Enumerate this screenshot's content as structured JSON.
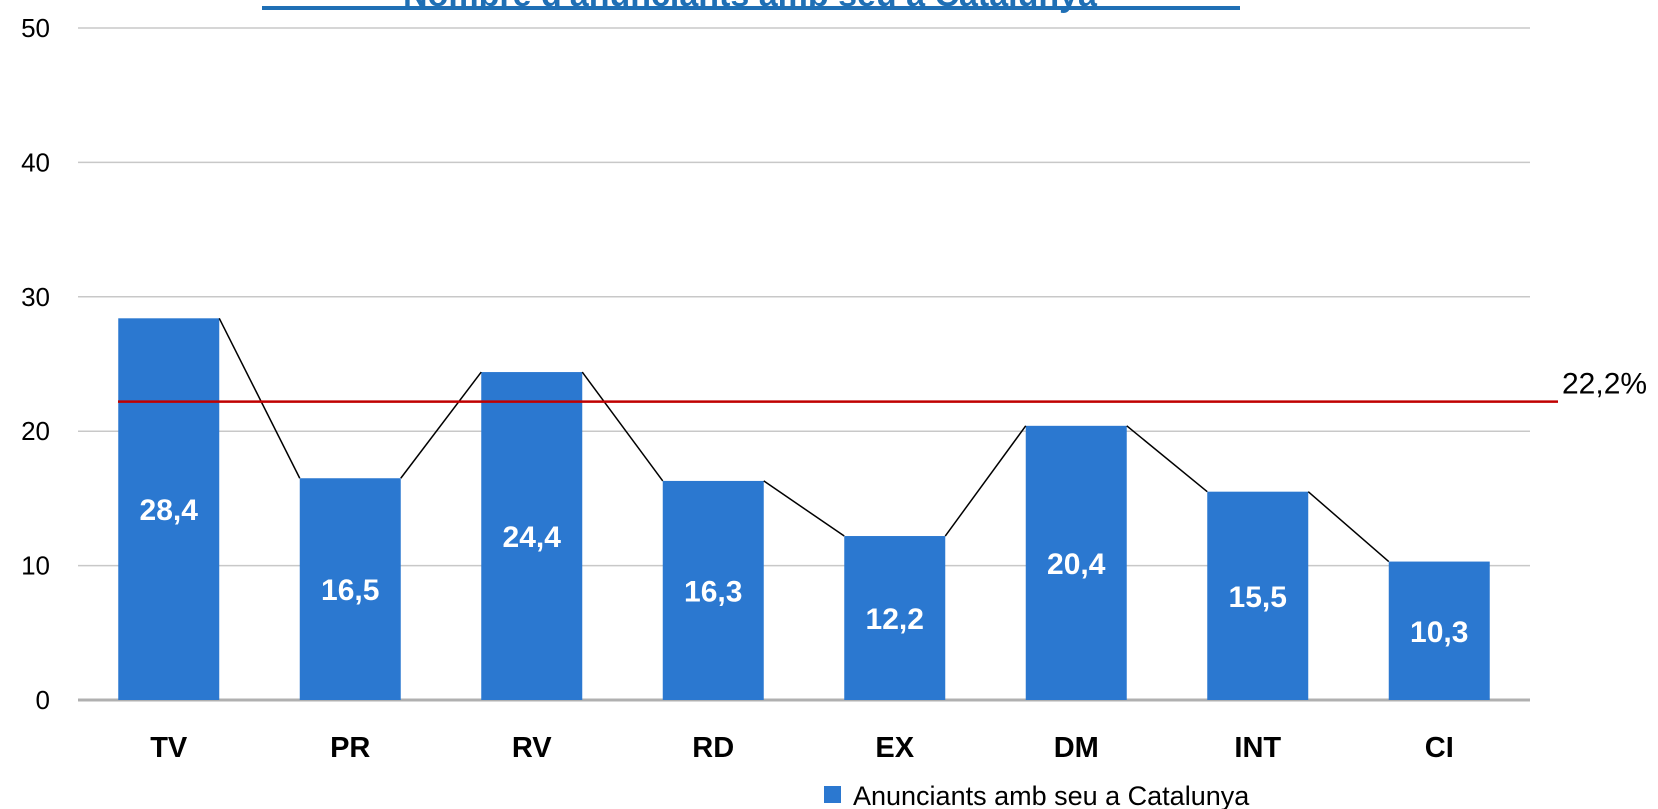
{
  "chart_data": {
    "type": "bar",
    "title": "Nombre d'anunciants amb seu a Catalunya",
    "categories": [
      "TV",
      "PR",
      "RV",
      "RD",
      "EX",
      "DM",
      "INT",
      "CI"
    ],
    "series": [
      {
        "name": "Anunciants amb seu a Catalunya",
        "values": [
          28.4,
          16.5,
          24.4,
          16.3,
          12.2,
          20.4,
          15.5,
          10.3
        ],
        "labels": [
          "28,4",
          "16,5",
          "24,4",
          "16,3",
          "12,2",
          "20,4",
          "15,5",
          "10,3"
        ]
      }
    ],
    "reference_line": {
      "value": 22.2,
      "label": "22,2%"
    },
    "ylim": [
      0,
      50
    ],
    "yticks": [
      "0",
      "10",
      "20",
      "30",
      "40",
      "50"
    ],
    "connector_lines": true,
    "grid": true,
    "legend_position": "bottom-right",
    "colors": {
      "bar": "#2b78d0",
      "reference": "#c00000",
      "grid": "#c8c8c8",
      "connector": "#000000",
      "title": "#1f6fb5"
    }
  }
}
